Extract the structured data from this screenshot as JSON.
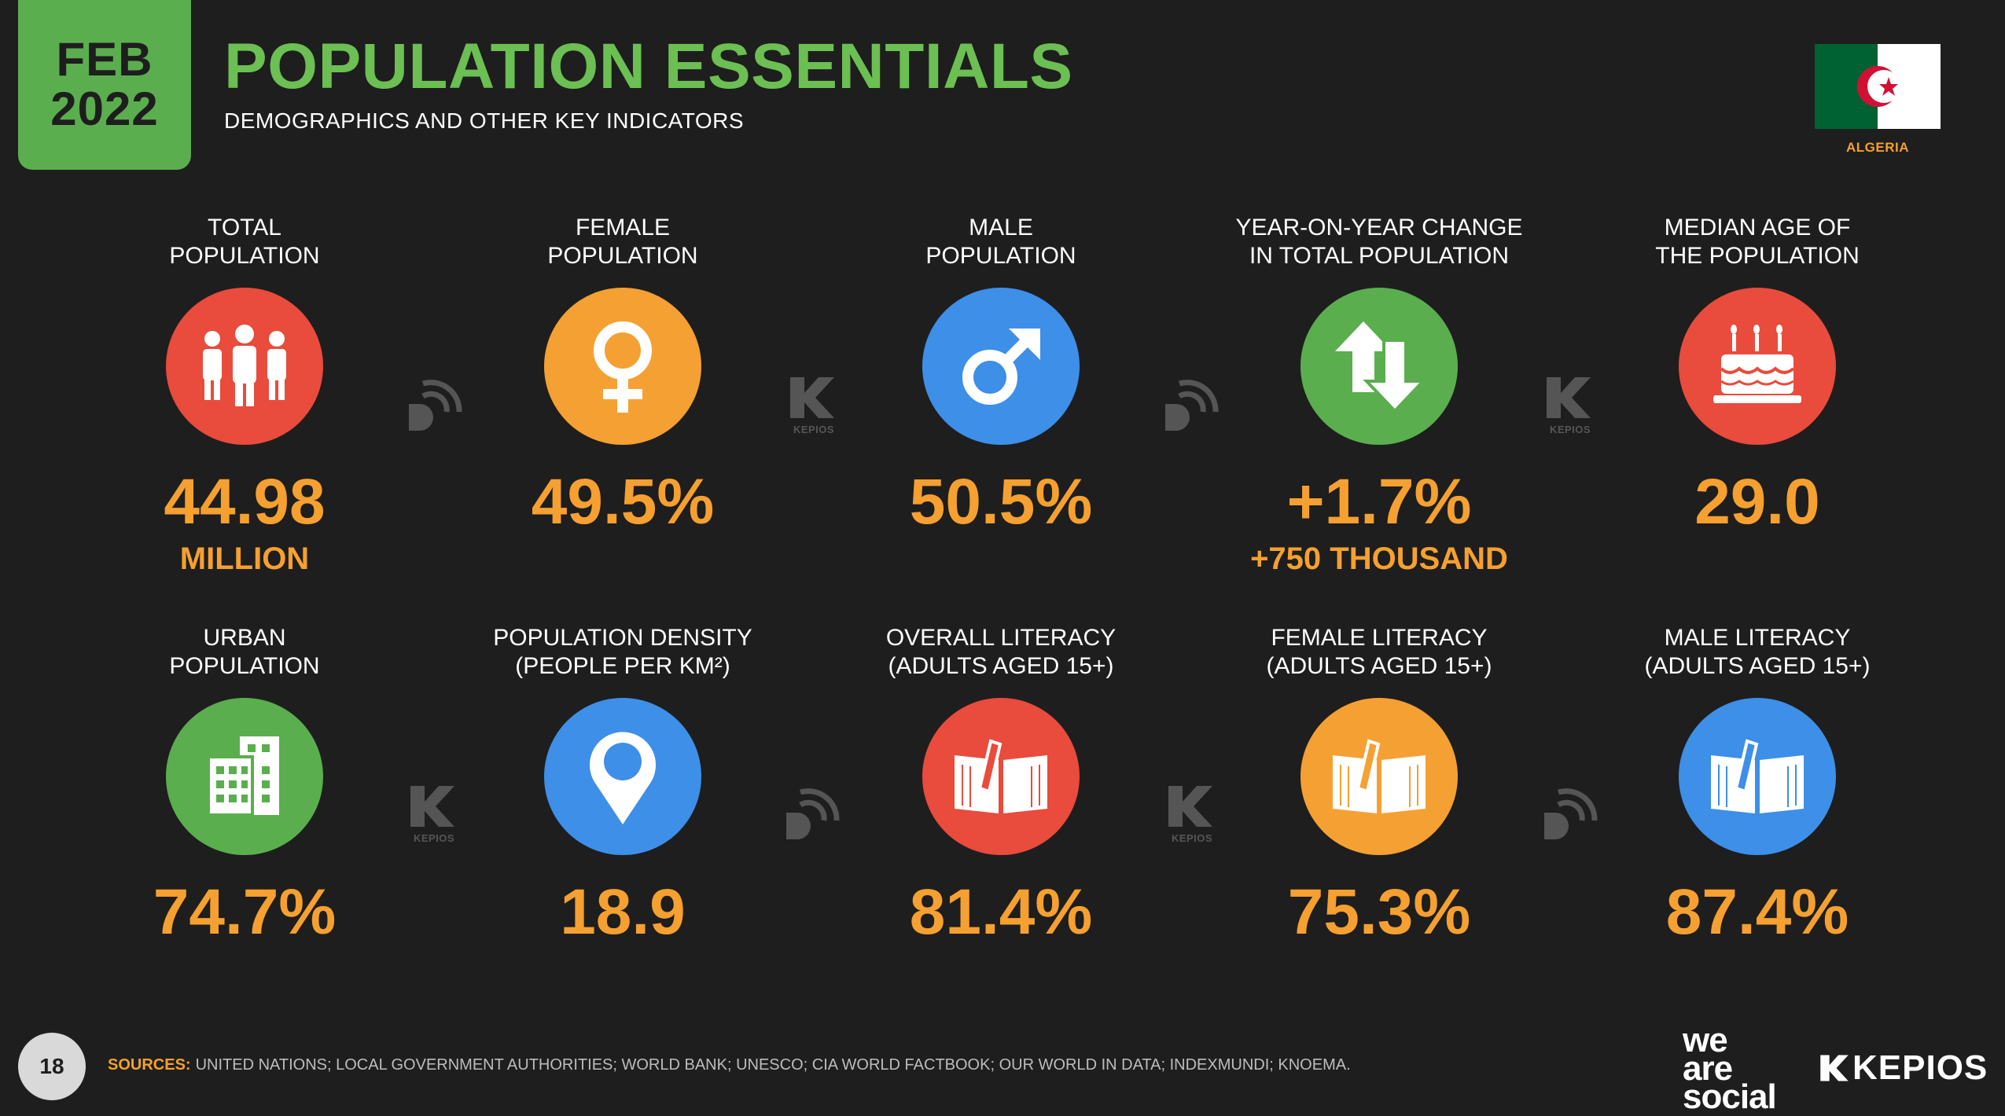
{
  "header": {
    "month": "FEB",
    "year": "2022",
    "title": "POPULATION ESSENTIALS",
    "subtitle": "DEMOGRAPHICS AND OTHER KEY INDICATORS",
    "country": "ALGERIA"
  },
  "colors": {
    "background": "#1e1e1e",
    "accent_green": "#6cbf52",
    "value_orange": "#f5a030",
    "red": "#e94b3c",
    "orange": "#f5a033",
    "blue": "#3d8fe8",
    "green": "#5aae4e"
  },
  "stats_row1": [
    {
      "label1": "TOTAL",
      "label2": "POPULATION",
      "value": "44.98",
      "subvalue": "MILLION",
      "icon": "people-icon",
      "color": "#e94b3c"
    },
    {
      "label1": "FEMALE",
      "label2": "POPULATION",
      "value": "49.5%",
      "subvalue": "",
      "icon": "female-icon",
      "color": "#f5a033"
    },
    {
      "label1": "MALE",
      "label2": "POPULATION",
      "value": "50.5%",
      "subvalue": "",
      "icon": "male-icon",
      "color": "#3d8fe8"
    },
    {
      "label1": "YEAR-ON-YEAR CHANGE",
      "label2": "IN TOTAL POPULATION",
      "value": "+1.7%",
      "subvalue": "+750 THOUSAND",
      "icon": "up-down-arrows-icon",
      "color": "#5aae4e"
    },
    {
      "label1": "MEDIAN AGE OF",
      "label2": "THE POPULATION",
      "value": "29.0",
      "subvalue": "",
      "icon": "birthday-cake-icon",
      "color": "#e94b3c"
    }
  ],
  "stats_row2": [
    {
      "label1": "URBAN",
      "label2": "POPULATION",
      "value": "74.7%",
      "icon": "buildings-icon",
      "color": "#5aae4e"
    },
    {
      "label1": "POPULATION DENSITY",
      "label2": "(PEOPLE PER KM²)",
      "value": "18.9",
      "icon": "location-pin-icon",
      "color": "#3d8fe8"
    },
    {
      "label1": "OVERALL LITERACY",
      "label2": "(ADULTS AGED 15+)",
      "value": "81.4%",
      "icon": "book-pen-icon",
      "color": "#e94b3c"
    },
    {
      "label1": "FEMALE LITERACY",
      "label2": "(ADULTS AGED 15+)",
      "value": "75.3%",
      "icon": "book-pen-icon",
      "color": "#f5a033"
    },
    {
      "label1": "MALE LITERACY",
      "label2": "(ADULTS AGED 15+)",
      "value": "87.4%",
      "icon": "book-pen-icon",
      "color": "#3d8fe8"
    }
  ],
  "watermark_kepios": "KEPIOS",
  "footer": {
    "page_number": "18",
    "sources_label": "SOURCES:",
    "sources_text": "UNITED NATIONS; LOCAL GOVERNMENT AUTHORITIES; WORLD BANK; UNESCO; CIA WORLD FACTBOOK; OUR WORLD IN DATA; INDEXMUNDI; KNOEMA.",
    "brand_we": "we",
    "brand_are": "are",
    "brand_social": "social",
    "brand_kepios": "KEPIOS"
  }
}
